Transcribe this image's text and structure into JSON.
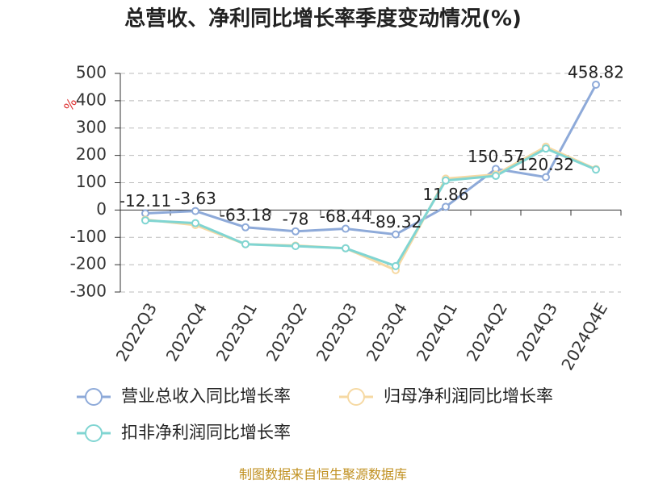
{
  "chart_data": {
    "type": "line",
    "title": "总营收、净利同比增长率季度变动情况(%)",
    "y_label": "%",
    "categories": [
      "2022Q3",
      "2022Q4",
      "2023Q1",
      "2023Q2",
      "2023Q3",
      "2023Q4",
      "2024Q1",
      "2024Q2",
      "2024Q3",
      "2024Q4E"
    ],
    "series": [
      {
        "name": "营业总收入同比增长率",
        "color": "#8eaad9",
        "values": [
          -12.11,
          -3.63,
          -63.18,
          -78,
          -68.44,
          -89.32,
          11.86,
          150.57,
          120.32,
          458.82
        ],
        "show_labels": true
      },
      {
        "name": "归母净利润同比增长率",
        "color": "#f6d9a3",
        "values": [
          -35,
          -55,
          -125,
          -130,
          -140,
          -220,
          115,
          130,
          232,
          150
        ],
        "show_labels": false
      },
      {
        "name": "扣非净利润同比增长率",
        "color": "#80d5d2",
        "values": [
          -38,
          -48,
          -125,
          -132,
          -140,
          -205,
          108,
          125,
          225,
          148
        ],
        "show_labels": false
      }
    ],
    "ylim": [
      -300,
      500
    ],
    "yticks": [
      -300,
      -200,
      -100,
      0,
      100,
      200,
      300,
      400,
      500
    ],
    "grid": true,
    "source": "制图数据来自恒生聚源数据库"
  }
}
